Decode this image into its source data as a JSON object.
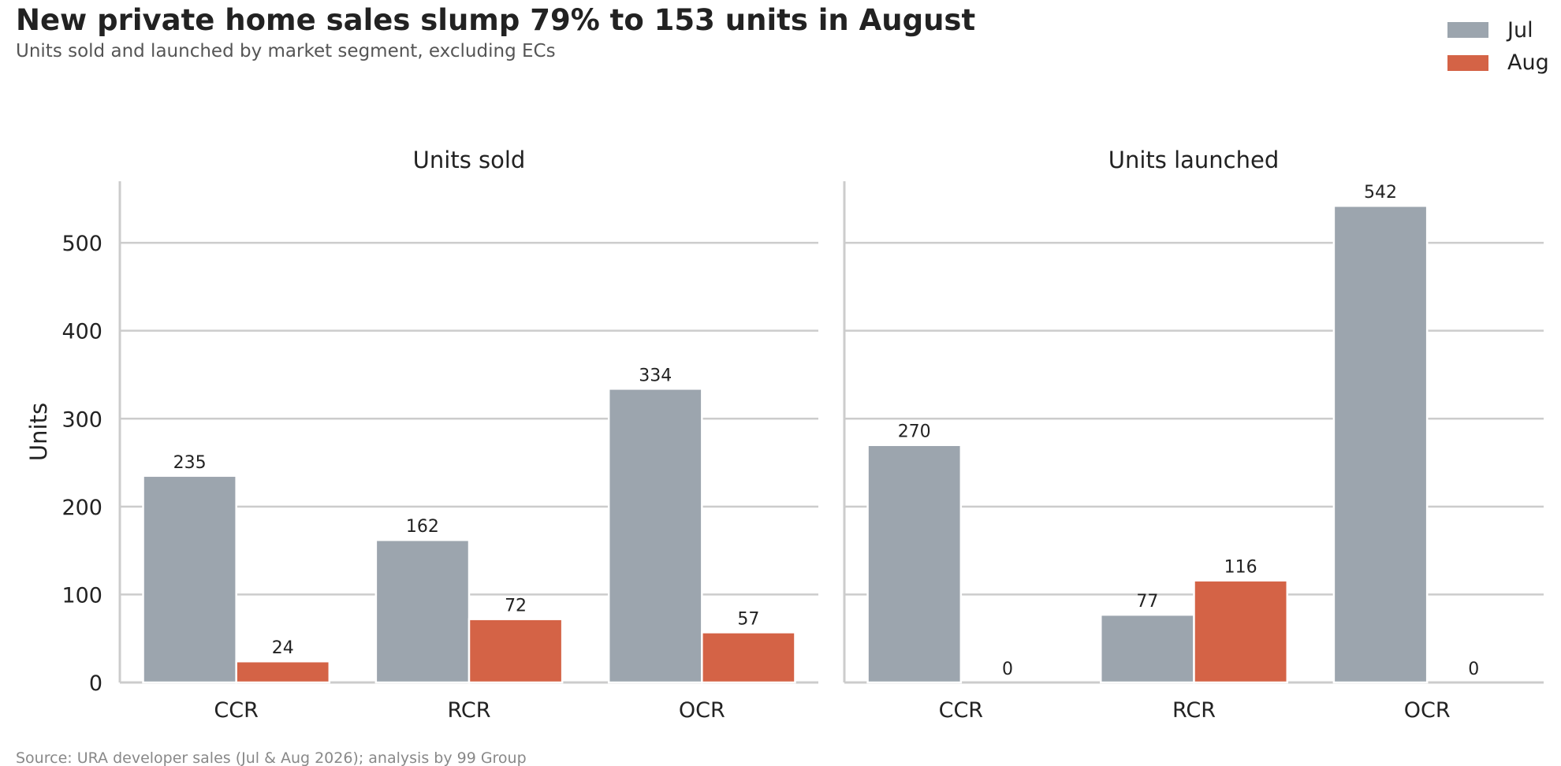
{
  "title": "New private home sales slump 79% to 153 units in August",
  "subtitle": "Units sold and launched by market segment, excluding ECs",
  "source": "Source: URA developer sales (Jul & Aug 2026); analysis by 99 Group",
  "colors": {
    "Jul": "#9ca5ae",
    "Aug": "#d46346"
  },
  "legend": {
    "placement": "top-right",
    "items": [
      "Jul",
      "Aug"
    ]
  },
  "chart_data": [
    {
      "type": "bar",
      "title": "Units sold",
      "categories": [
        "CCR",
        "RCR",
        "OCR"
      ],
      "series": [
        {
          "name": "Jul",
          "values": [
            235,
            162,
            334
          ]
        },
        {
          "name": "Aug",
          "values": [
            24,
            72,
            57
          ]
        }
      ],
      "xlabel": "",
      "ylabel": "Units",
      "ylim": [
        0,
        570
      ],
      "yticks": [
        0,
        100,
        200,
        300,
        400,
        500
      ],
      "grid": true
    },
    {
      "type": "bar",
      "title": "Units launched",
      "categories": [
        "CCR",
        "RCR",
        "OCR"
      ],
      "series": [
        {
          "name": "Jul",
          "values": [
            270,
            77,
            542
          ]
        },
        {
          "name": "Aug",
          "values": [
            0,
            116,
            0
          ]
        }
      ],
      "xlabel": "",
      "ylabel": "",
      "ylim": [
        0,
        570
      ],
      "yticks": [
        0,
        100,
        200,
        300,
        400,
        500
      ],
      "grid": true
    }
  ]
}
